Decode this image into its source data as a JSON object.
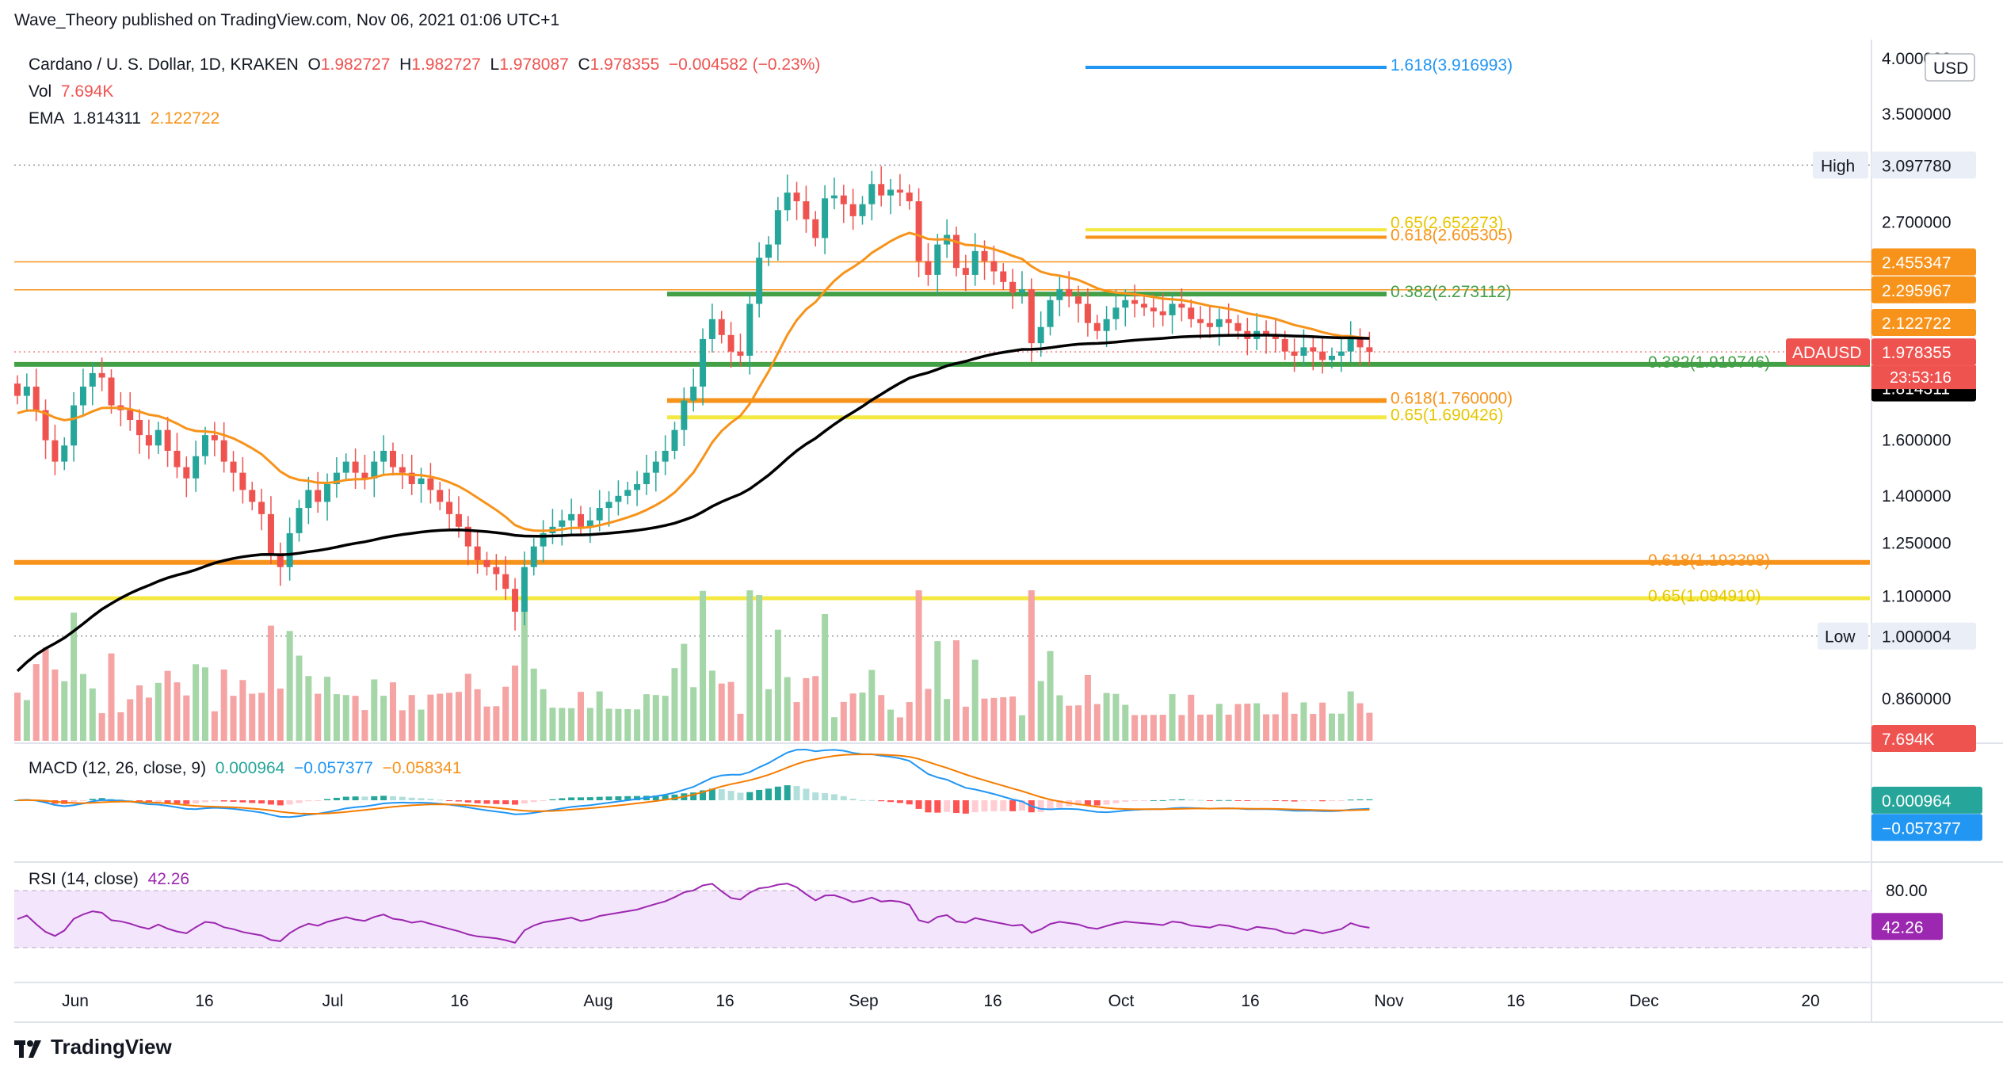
{
  "publisher_line": "Wave_Theory published on TradingView.com, Nov 06, 2021 01:06 UTC+1",
  "brand": "TradingView",
  "legend": {
    "symbol": "Cardano / U. S. Dollar, 1D, KRAKEN",
    "o_label": "O",
    "o": "1.982727",
    "h_label": "H",
    "h": "1.982727",
    "l_label": "L",
    "l": "1.978087",
    "c_label": "C",
    "c": "1.978355",
    "change": "−0.004582 (−0.23%)",
    "vol_label": "Vol",
    "vol": "7.694K",
    "ema_label": "EMA",
    "ema1": "1.814311",
    "ema2": "2.122722"
  },
  "macd_legend": {
    "label": "MACD (12, 26, close, 9)",
    "v1": "0.000964",
    "v2": "−0.057377",
    "v3": "−0.058341"
  },
  "rsi_legend": {
    "label": "RSI (14, close)",
    "v": "42.26"
  },
  "currency": "USD",
  "colors": {
    "up": "#26a69a",
    "down": "#ef5350",
    "up_vol": "#a5d6a7",
    "down_vol": "#f5a3a3",
    "ema_fast": "#f7931a",
    "ema_slow": "#000000",
    "green_level": "#43a047",
    "orange_level": "#f7931a",
    "yellow_level": "#f4e842",
    "blue_level": "#2196f3",
    "rsi_band": "#f3e5fb",
    "rsi_line": "#9c27b0",
    "macd_line": "#2196f3",
    "signal_line": "#f57c00"
  },
  "chart_data": {
    "type": "candlestick",
    "symbol": "ADAUSD",
    "x_labels": [
      "Jun",
      "16",
      "Jul",
      "16",
      "Aug",
      "16",
      "Sep",
      "16",
      "Oct",
      "16",
      "Nov",
      "16",
      "Dec",
      "20"
    ],
    "y_ticks": [
      "4.000000",
      "3.500000",
      "2.700000",
      "1.600000",
      "1.400000",
      "1.250000",
      "1.100000",
      "0.860000"
    ],
    "y_ticks_hidden_under_tags": [
      "3.097780",
      "2.455347",
      "2.295967",
      "2.122722",
      "1.978355",
      "1.814311",
      "1.000004"
    ],
    "fib_levels": [
      {
        "label": "1.618(3.916993)",
        "value": 3.916993,
        "color": "blue"
      },
      {
        "label": "0.618(2.605305)",
        "value": 2.605305,
        "color": "orange"
      },
      {
        "label": "0.65(2.652273)",
        "value": 2.652273,
        "color": "yellow"
      },
      {
        "label": "0.382(2.273112)",
        "value": 2.273112,
        "color": "green"
      },
      {
        "label": "0.382(1.919746)",
        "value": 1.919746,
        "color": "green"
      },
      {
        "label": "0.618(1.760000)",
        "value": 1.76,
        "color": "orange"
      },
      {
        "label": "0.65(1.690426)",
        "value": 1.690426,
        "color": "yellow"
      },
      {
        "label": "0.618(1.193398)",
        "value": 1.193398,
        "color": "orange"
      },
      {
        "label": "0.65(1.094910)",
        "value": 1.09491,
        "color": "yellow"
      }
    ],
    "horizontal_lines": [
      2.455347,
      2.295967
    ],
    "high_label": "High",
    "high_value": "3.097780",
    "low_label": "Low",
    "low_value": "1.000004",
    "price_tags": [
      {
        "text": "2.455347",
        "value": 2.455347,
        "color": "#f7931a"
      },
      {
        "text": "2.295967",
        "value": 2.295967,
        "color": "#f7931a"
      },
      {
        "text": "2.122722",
        "value": 2.122722,
        "color": "#f7931a"
      },
      {
        "text": "1.978355",
        "value": 1.978355,
        "color": "#ef5350"
      },
      {
        "text": "1.814311",
        "value": 1.814311,
        "color": "#000000"
      }
    ],
    "countdown": "23:53:16",
    "volume_tag": "7.694K",
    "macd_tags": [
      "0.000964",
      "−0.057377"
    ],
    "rsi_ticks": [
      "80.00"
    ],
    "rsi_tag": "42.26",
    "closes": [
      1.78,
      1.82,
      1.72,
      1.6,
      1.52,
      1.58,
      1.74,
      1.82,
      1.88,
      1.86,
      1.74,
      1.72,
      1.68,
      1.62,
      1.58,
      1.64,
      1.56,
      1.5,
      1.46,
      1.54,
      1.62,
      1.6,
      1.52,
      1.48,
      1.42,
      1.38,
      1.34,
      1.22,
      1.18,
      1.28,
      1.36,
      1.42,
      1.38,
      1.44,
      1.48,
      1.52,
      1.48,
      1.46,
      1.52,
      1.56,
      1.5,
      1.48,
      1.44,
      1.46,
      1.42,
      1.38,
      1.34,
      1.3,
      1.24,
      1.2,
      1.18,
      1.16,
      1.12,
      1.06,
      1.18,
      1.24,
      1.28,
      1.3,
      1.32,
      1.34,
      1.3,
      1.32,
      1.36,
      1.38,
      1.4,
      1.42,
      1.44,
      1.48,
      1.52,
      1.56,
      1.64,
      1.76,
      1.82,
      2.04,
      2.14,
      2.06,
      1.98,
      1.96,
      2.22,
      2.48,
      2.56,
      2.78,
      2.9,
      2.84,
      2.72,
      2.6,
      2.86,
      2.88,
      2.82,
      2.74,
      2.82,
      2.96,
      2.88,
      2.92,
      2.9,
      2.84,
      2.46,
      2.38,
      2.56,
      2.62,
      2.42,
      2.38,
      2.52,
      2.46,
      2.4,
      2.34,
      2.28,
      2.3,
      2.02,
      2.1,
      2.24,
      2.3,
      2.26,
      2.22,
      2.12,
      2.08,
      2.14,
      2.2,
      2.24,
      2.22,
      2.2,
      2.18,
      2.16,
      2.22,
      2.2,
      2.14,
      2.12,
      2.1,
      2.14,
      2.12,
      2.08,
      2.04,
      2.08,
      2.06,
      2.04,
      1.98,
      1.96,
      2.0,
      1.98,
      1.94,
      1.96,
      1.98,
      2.04,
      2.0,
      1.978
    ]
  }
}
